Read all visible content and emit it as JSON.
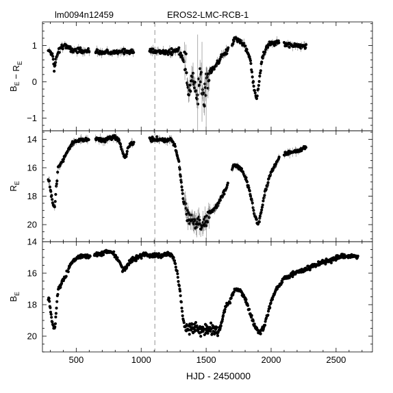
{
  "header": {
    "left_label": "lm0094n12459",
    "title": "EROS2-LMC-RCB-1"
  },
  "chart_data": {
    "type": "scatter",
    "xlabel": "HJD - 2450000",
    "xlim": [
      240,
      2780
    ],
    "x_ticks": [
      500,
      1000,
      1500,
      2000,
      2500
    ],
    "x_tick_labels": [
      "500",
      "1000",
      "1500",
      "2000",
      "2500"
    ],
    "reference_line_x": 1105,
    "panels": [
      {
        "id": "color",
        "ylabel_main": "B",
        "ylabel_sub_1": "E",
        "ylabel_mid": " − R",
        "ylabel_sub_2": "E",
        "ylim": [
          -1.35,
          1.65
        ],
        "y_ticks": [
          1,
          0,
          -1
        ],
        "y_tick_labels": [
          "1",
          "0",
          "−1"
        ],
        "y_inverted": false,
        "has_error_bars": true,
        "curve": [
          [
            290,
            0.85
          ],
          [
            320,
            0.75
          ],
          [
            330,
            0.35
          ],
          [
            350,
            0.7
          ],
          [
            380,
            0.95
          ],
          [
            410,
            1.02
          ],
          [
            450,
            0.9
          ],
          [
            520,
            0.87
          ],
          [
            590,
            0.85
          ],
          [
            680,
            0.82
          ],
          [
            720,
            0.8
          ],
          [
            780,
            0.79
          ],
          [
            830,
            0.83
          ],
          [
            870,
            0.86
          ],
          [
            900,
            0.82
          ],
          [
            930,
            0.85
          ],
          [
            1080,
            0.83
          ],
          [
            1150,
            0.84
          ],
          [
            1200,
            0.8
          ],
          [
            1250,
            0.85
          ],
          [
            1290,
            0.87
          ],
          [
            1320,
            0.65
          ],
          [
            1345,
            0.3
          ],
          [
            1370,
            -0.2
          ],
          [
            1395,
            0.2
          ],
          [
            1420,
            -0.5
          ],
          [
            1440,
            -0.3
          ],
          [
            1460,
            0.1
          ],
          [
            1480,
            -0.6
          ],
          [
            1500,
            0.2
          ],
          [
            1530,
            0.3
          ],
          [
            1560,
            0.35
          ],
          [
            1590,
            0.55
          ],
          [
            1620,
            0.7
          ],
          [
            1650,
            0.8
          ],
          [
            1720,
            1.17
          ],
          [
            1760,
            1.12
          ],
          [
            1800,
            1.0
          ],
          [
            1840,
            0.6
          ],
          [
            1870,
            -0.2
          ],
          [
            1890,
            -0.5
          ],
          [
            1910,
            0.1
          ],
          [
            1930,
            0.6
          ],
          [
            1960,
            0.95
          ],
          [
            1990,
            1.05
          ],
          [
            2040,
            1.08
          ],
          [
            2110,
            1.02
          ],
          [
            2150,
            1.0
          ],
          [
            2200,
            0.98
          ],
          [
            2260,
            0.97
          ]
        ],
        "ranges": [
          [
            285,
            600
          ],
          [
            650,
            945
          ],
          [
            1065,
            1295
          ],
          [
            1300,
            1670
          ],
          [
            1700,
            2060
          ],
          [
            2100,
            2270
          ]
        ],
        "scatter": 0.06,
        "wide_scatter_range": [
          1330,
          1530
        ],
        "wide_scatter": 0.35
      },
      {
        "id": "r_mag",
        "ylabel_main": "R",
        "ylabel_sub_1": "E",
        "ylim": [
          21.2,
          13.4
        ],
        "y_ticks": [
          14,
          16,
          18,
          20
        ],
        "y_tick_labels": [
          "14",
          "16",
          "18",
          "20"
        ],
        "y_inverted": true,
        "has_error_bars": true,
        "curve": [
          [
            290,
            16.8
          ],
          [
            320,
            18.6
          ],
          [
            335,
            18.7
          ],
          [
            345,
            17.5
          ],
          [
            360,
            16.0
          ],
          [
            390,
            15.6
          ],
          [
            420,
            15.0
          ],
          [
            460,
            14.4
          ],
          [
            500,
            14.1
          ],
          [
            560,
            14.0
          ],
          [
            600,
            14.05
          ],
          [
            660,
            14.0
          ],
          [
            720,
            14.1
          ],
          [
            760,
            13.9
          ],
          [
            800,
            13.85
          ],
          [
            830,
            14.1
          ],
          [
            860,
            15.0
          ],
          [
            880,
            15.3
          ],
          [
            900,
            14.6
          ],
          [
            930,
            14.25
          ],
          [
            1070,
            14.0
          ],
          [
            1120,
            14.0
          ],
          [
            1180,
            14.1
          ],
          [
            1230,
            14.0
          ],
          [
            1260,
            14.5
          ],
          [
            1290,
            15.6
          ],
          [
            1310,
            17.2
          ],
          [
            1330,
            18.6
          ],
          [
            1360,
            19.4
          ],
          [
            1400,
            19.7
          ],
          [
            1440,
            19.9
          ],
          [
            1480,
            20.0
          ],
          [
            1500,
            19.9
          ],
          [
            1530,
            19.2
          ],
          [
            1560,
            18.9
          ],
          [
            1590,
            18.6
          ],
          [
            1620,
            18.1
          ],
          [
            1660,
            17.3
          ],
          [
            1710,
            15.85
          ],
          [
            1740,
            15.9
          ],
          [
            1770,
            16.1
          ],
          [
            1800,
            16.6
          ],
          [
            1840,
            17.8
          ],
          [
            1870,
            19.2
          ],
          [
            1900,
            20.0
          ],
          [
            1920,
            19.3
          ],
          [
            1950,
            17.8
          ],
          [
            1990,
            16.6
          ],
          [
            2030,
            15.8
          ],
          [
            2060,
            15.3
          ],
          [
            2110,
            15.0
          ],
          [
            2170,
            14.9
          ],
          [
            2220,
            14.8
          ],
          [
            2270,
            14.5
          ]
        ],
        "ranges": [
          [
            285,
            600
          ],
          [
            650,
            945
          ],
          [
            1065,
            1670
          ],
          [
            1700,
            2065
          ],
          [
            2100,
            2270
          ]
        ],
        "scatter": 0.12,
        "wide_scatter_range": [
          1330,
          1530
        ],
        "wide_scatter": 0.35
      },
      {
        "id": "b_mag",
        "ylabel_main": "B",
        "ylabel_sub_1": "E",
        "ylim": [
          21.0,
          14.0
        ],
        "y_ticks": [
          14,
          16,
          18,
          20
        ],
        "y_tick_labels": [
          "14",
          "16",
          "18",
          "20"
        ],
        "y_inverted": true,
        "has_error_bars": false,
        "curve": [
          [
            290,
            17.6
          ],
          [
            305,
            18.6
          ],
          [
            320,
            19.3
          ],
          [
            335,
            19.6
          ],
          [
            345,
            18.5
          ],
          [
            360,
            17.0
          ],
          [
            390,
            16.6
          ],
          [
            420,
            16.2
          ],
          [
            450,
            15.5
          ],
          [
            480,
            15.2
          ],
          [
            520,
            14.95
          ],
          [
            560,
            14.9
          ],
          [
            600,
            15.0
          ],
          [
            650,
            14.8
          ],
          [
            690,
            14.8
          ],
          [
            730,
            14.65
          ],
          [
            770,
            14.6
          ],
          [
            800,
            14.9
          ],
          [
            830,
            15.2
          ],
          [
            860,
            15.8
          ],
          [
            880,
            15.7
          ],
          [
            910,
            15.3
          ],
          [
            940,
            15.1
          ],
          [
            980,
            15.0
          ],
          [
            1020,
            14.8
          ],
          [
            1060,
            14.9
          ],
          [
            1100,
            14.8
          ],
          [
            1150,
            14.9
          ],
          [
            1190,
            14.8
          ],
          [
            1230,
            14.85
          ],
          [
            1250,
            15.0
          ],
          [
            1280,
            16.1
          ],
          [
            1300,
            17.2
          ],
          [
            1320,
            18.8
          ],
          [
            1340,
            19.5
          ],
          [
            1400,
            19.5
          ],
          [
            1450,
            19.7
          ],
          [
            1500,
            19.6
          ],
          [
            1560,
            19.5
          ],
          [
            1600,
            19.8
          ],
          [
            1650,
            18.1
          ],
          [
            1680,
            17.9
          ],
          [
            1720,
            17.0
          ],
          [
            1760,
            17.1
          ],
          [
            1800,
            17.6
          ],
          [
            1840,
            18.6
          ],
          [
            1880,
            19.5
          ],
          [
            1910,
            19.8
          ],
          [
            1940,
            19.5
          ],
          [
            1960,
            19.0
          ],
          [
            2000,
            17.8
          ],
          [
            2040,
            17.0
          ],
          [
            2080,
            16.6
          ],
          [
            2100,
            16.3
          ],
          [
            2180,
            16.0
          ],
          [
            2250,
            15.8
          ],
          [
            2330,
            15.5
          ],
          [
            2400,
            15.3
          ],
          [
            2460,
            15.2
          ],
          [
            2510,
            14.95
          ],
          [
            2580,
            14.9
          ],
          [
            2640,
            14.9
          ],
          [
            2660,
            15.0
          ]
        ],
        "ranges": [
          [
            285,
            610
          ],
          [
            640,
            2670
          ]
        ],
        "scatter": 0.12,
        "wide_scatter_range": [
          1330,
          1610
        ],
        "wide_scatter": 0.3
      }
    ]
  }
}
